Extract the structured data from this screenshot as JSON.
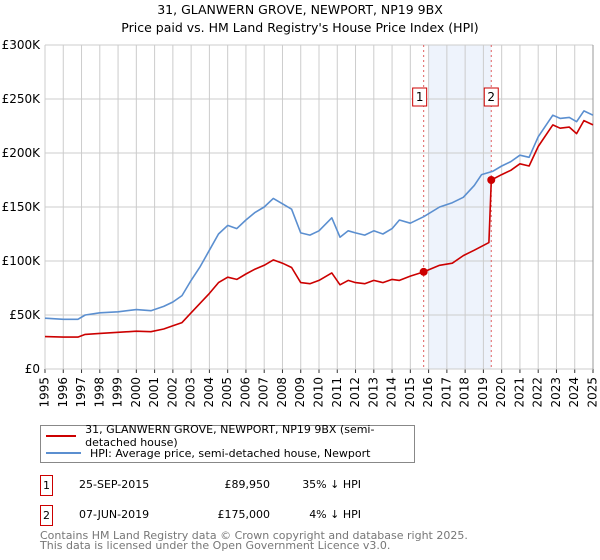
{
  "chart_data": {
    "type": "line",
    "title": "31, GLANWERN GROVE, NEWPORT, NP19 9BX",
    "subtitle": "Price paid vs. HM Land Registry's House Price Index (HPI)",
    "xlim": [
      1995,
      2025
    ],
    "ylim": [
      0,
      300000
    ],
    "x_ticks": [
      "1995",
      "1996",
      "1997",
      "1998",
      "1999",
      "2000",
      "2001",
      "2002",
      "2003",
      "2004",
      "2005",
      "2006",
      "2007",
      "2008",
      "2009",
      "2010",
      "2011",
      "2012",
      "2013",
      "2014",
      "2015",
      "2016",
      "2017",
      "2018",
      "2019",
      "2020",
      "2021",
      "2022",
      "2023",
      "2024",
      "2025"
    ],
    "y_ticks": [
      {
        "v": 0,
        "label": "£0"
      },
      {
        "v": 50000,
        "label": "£50K"
      },
      {
        "v": 100000,
        "label": "£100K"
      },
      {
        "v": 150000,
        "label": "£150K"
      },
      {
        "v": 200000,
        "label": "£200K"
      },
      {
        "v": 250000,
        "label": "£250K"
      },
      {
        "v": 300000,
        "label": "£300K"
      }
    ],
    "grid": true,
    "shaded_range": [
      2016.0,
      2019.43
    ],
    "series": [
      {
        "name": "31, GLANWERN GROVE, NEWPORT, NP19 9BX (semi-detached house)",
        "color": "#cc0000",
        "x": [
          1995,
          1996,
          1996.8,
          1997.2,
          1998,
          1999,
          2000,
          2000.8,
          2001.5,
          2002,
          2002.5,
          2003,
          2003.5,
          2004,
          2004.5,
          2005,
          2005.5,
          2006,
          2006.5,
          2007,
          2007.5,
          2008,
          2008.5,
          2009,
          2009.5,
          2010,
          2010.7,
          2011.15,
          2011.6,
          2012,
          2012.5,
          2013,
          2013.5,
          2014,
          2014.4,
          2015,
          2015.73,
          2016.6,
          2017.3,
          2017.9,
          2018.5,
          2019.3,
          2019.43,
          2020,
          2020.5,
          2021,
          2021.5,
          2022,
          2022.8,
          2023.2,
          2023.7,
          2024.1,
          2024.5,
          2025
        ],
        "y": [
          30000,
          29500,
          29500,
          32000,
          33000,
          34000,
          35000,
          34500,
          37000,
          40000,
          43000,
          52000,
          61000,
          70000,
          80000,
          85000,
          83000,
          88000,
          92500,
          96000,
          101000,
          98000,
          94000,
          80000,
          79000,
          82000,
          89000,
          78000,
          82000,
          80000,
          79000,
          82000,
          80000,
          83000,
          82000,
          86000,
          89950,
          96000,
          98000,
          105000,
          110000,
          117000,
          175000,
          180000,
          184000,
          190000,
          188000,
          206000,
          226000,
          223000,
          224000,
          218000,
          230000,
          226000
        ]
      },
      {
        "name": "HPI: Average price, semi-detached house, Newport",
        "color": "#5b8fd0",
        "x": [
          1995,
          1996,
          1996.8,
          1997.2,
          1998,
          1999,
          2000,
          2000.8,
          2001.5,
          2002,
          2002.5,
          2003,
          2003.5,
          2004,
          2004.5,
          2005,
          2005.5,
          2006,
          2006.5,
          2007,
          2007.5,
          2008,
          2008.5,
          2009,
          2009.5,
          2010,
          2010.7,
          2011.15,
          2011.6,
          2012,
          2012.5,
          2013,
          2013.5,
          2014,
          2014.4,
          2015,
          2015.73,
          2016.6,
          2017.3,
          2017.9,
          2018.5,
          2018.9,
          2019.5,
          2020,
          2020.5,
          2021,
          2021.5,
          2022,
          2022.8,
          2023.2,
          2023.7,
          2024.1,
          2024.5,
          2025
        ],
        "y": [
          47000,
          46000,
          46000,
          50000,
          52000,
          53000,
          55000,
          54000,
          58000,
          62000,
          68000,
          82000,
          95000,
          110000,
          125000,
          133000,
          130000,
          138000,
          145000,
          150000,
          158000,
          153000,
          148000,
          126000,
          124000,
          128000,
          140000,
          122000,
          128000,
          126000,
          124000,
          128000,
          125000,
          130000,
          138000,
          135000,
          141000,
          150000,
          154000,
          159000,
          170000,
          180000,
          183000,
          188000,
          192000,
          198000,
          196000,
          215000,
          235000,
          232000,
          233000,
          229000,
          239000,
          235000
        ]
      }
    ],
    "markers": [
      {
        "label": "1",
        "x": 2015.73,
        "y": 89950
      },
      {
        "label": "2",
        "x": 2019.43,
        "y": 175000
      }
    ],
    "legend": "below"
  },
  "transactions": [
    {
      "num": "1",
      "date": "25-SEP-2015",
      "price": "£89,950",
      "hpi": "35% ↓ HPI"
    },
    {
      "num": "2",
      "date": "07-JUN-2019",
      "price": "£175,000",
      "hpi": "4% ↓ HPI"
    }
  ],
  "footer": {
    "line1": "Contains HM Land Registry data © Crown copyright and database right 2025.",
    "line2": "This data is licensed under the Open Government Licence v3.0."
  }
}
